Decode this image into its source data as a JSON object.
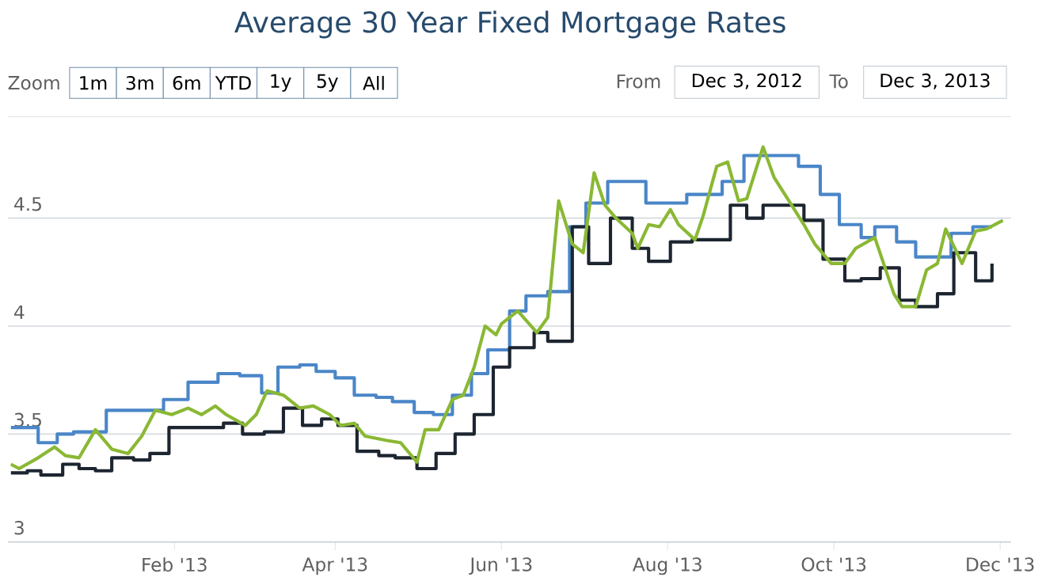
{
  "chart_data": {
    "type": "line",
    "title": "Average 30 Year Fixed Mortgage Rates",
    "annotations": [
      "Zoom",
      "1m",
      "3m",
      "6m",
      "YTD",
      "1y",
      "5y",
      "All",
      "From",
      "Dec 3, 2012",
      "To",
      "Dec 3, 2013"
    ],
    "xlim": [
      "2012-12-02",
      "2013-12-05"
    ],
    "ylim": [
      3,
      4.97
    ],
    "xticks": [
      {
        "value": "2013-02-01",
        "label": "Feb '13"
      },
      {
        "value": "2013-04-01",
        "label": "Apr '13"
      },
      {
        "value": "2013-06-01",
        "label": "Jun '13"
      },
      {
        "value": "2013-08-01",
        "label": "Aug '13"
      },
      {
        "value": "2013-10-01",
        "label": "Oct '13"
      },
      {
        "value": "2013-12-01",
        "label": "Dec '13"
      }
    ],
    "yticks": [
      3,
      3.5,
      4,
      4.5
    ],
    "grid": "y",
    "series": [
      {
        "type": "step",
        "color": "#4a86c8",
        "x": [
          "2012-12-03",
          "2012-12-13",
          "2012-12-20",
          "2012-12-26",
          "2013-01-07",
          "2013-01-28",
          "2013-02-06",
          "2013-02-17",
          "2013-02-25",
          "2013-03-05",
          "2013-03-11",
          "2013-03-19",
          "2013-03-25",
          "2013-04-01",
          "2013-04-08",
          "2013-04-16",
          "2013-04-22",
          "2013-04-30",
          "2013-05-07",
          "2013-05-14",
          "2013-05-21",
          "2013-05-27",
          "2013-06-04",
          "2013-06-10",
          "2013-06-18",
          "2013-06-26",
          "2013-07-02",
          "2013-07-10",
          "2013-07-24",
          "2013-08-08",
          "2013-08-21",
          "2013-08-29",
          "2013-09-18",
          "2013-09-26",
          "2013-10-03",
          "2013-10-11",
          "2013-10-16",
          "2013-10-24",
          "2013-10-31",
          "2013-11-13",
          "2013-11-21",
          "2013-11-28"
        ],
        "values": [
          3.53,
          3.46,
          3.5,
          3.51,
          3.61,
          3.66,
          3.74,
          3.78,
          3.77,
          3.69,
          3.81,
          3.82,
          3.79,
          3.76,
          3.68,
          3.67,
          3.65,
          3.6,
          3.59,
          3.68,
          3.78,
          3.89,
          4.07,
          4.14,
          4.16,
          4.46,
          4.57,
          4.67,
          4.57,
          4.61,
          4.67,
          4.79,
          4.74,
          4.61,
          4.47,
          4.41,
          4.46,
          4.39,
          4.32,
          4.43,
          4.46,
          4.46
        ]
      },
      {
        "type": "step",
        "color": "#1c2530",
        "x": [
          "2012-12-03",
          "2012-12-09",
          "2012-12-14",
          "2012-12-22",
          "2012-12-28",
          "2013-01-03",
          "2013-01-09",
          "2013-01-17",
          "2013-01-23",
          "2013-01-30",
          "2013-02-19",
          "2013-02-26",
          "2013-03-06",
          "2013-03-13",
          "2013-03-20",
          "2013-03-27",
          "2013-04-02",
          "2013-04-09",
          "2013-04-17",
          "2013-04-23",
          "2013-05-01",
          "2013-05-08",
          "2013-05-15",
          "2013-05-22",
          "2013-05-29",
          "2013-06-04",
          "2013-06-13",
          "2013-06-18",
          "2013-06-27",
          "2013-07-03",
          "2013-07-11",
          "2013-07-19",
          "2013-07-25",
          "2013-08-02",
          "2013-08-10",
          "2013-08-24",
          "2013-08-30",
          "2013-09-05",
          "2013-09-20",
          "2013-09-27",
          "2013-10-05",
          "2013-10-11",
          "2013-10-18",
          "2013-10-25",
          "2013-10-31",
          "2013-11-08",
          "2013-11-14",
          "2013-11-22",
          "2013-11-28"
        ],
        "values": [
          3.32,
          3.33,
          3.31,
          3.36,
          3.34,
          3.33,
          3.39,
          3.38,
          3.41,
          3.53,
          3.55,
          3.5,
          3.51,
          3.62,
          3.54,
          3.57,
          3.54,
          3.42,
          3.4,
          3.39,
          3.34,
          3.41,
          3.5,
          3.59,
          3.81,
          3.9,
          3.97,
          3.93,
          4.46,
          4.29,
          4.5,
          4.36,
          4.3,
          4.39,
          4.4,
          4.56,
          4.5,
          4.56,
          4.49,
          4.31,
          4.21,
          4.22,
          4.27,
          4.12,
          4.09,
          4.15,
          4.34,
          4.21,
          4.29
        ]
      },
      {
        "color": "#8ab834",
        "x": [
          "2012-12-03",
          "2012-12-06",
          "2012-12-13",
          "2012-12-19",
          "2012-12-23",
          "2012-12-28",
          "2013-01-03",
          "2013-01-09",
          "2013-01-15",
          "2013-01-20",
          "2013-01-25",
          "2013-01-31",
          "2013-02-06",
          "2013-02-11",
          "2013-02-16",
          "2013-02-20",
          "2013-02-27",
          "2013-03-03",
          "2013-03-07",
          "2013-03-13",
          "2013-03-19",
          "2013-03-24",
          "2013-03-30",
          "2013-04-03",
          "2013-04-08",
          "2013-04-12",
          "2013-04-20",
          "2013-04-25",
          "2013-05-01",
          "2013-05-04",
          "2013-05-09",
          "2013-05-14",
          "2013-05-18",
          "2013-05-22",
          "2013-05-26",
          "2013-05-30",
          "2013-06-01",
          "2013-06-07",
          "2013-06-14",
          "2013-06-18",
          "2013-06-22",
          "2013-06-27",
          "2013-07-01",
          "2013-07-05",
          "2013-07-09",
          "2013-07-13",
          "2013-07-19",
          "2013-07-21",
          "2013-07-25",
          "2013-07-29",
          "2013-08-02",
          "2013-08-05",
          "2013-08-11",
          "2013-08-14",
          "2013-08-19",
          "2013-08-23",
          "2013-08-27",
          "2013-08-30",
          "2013-09-05",
          "2013-09-09",
          "2013-09-14",
          "2013-09-20",
          "2013-09-24",
          "2013-09-30",
          "2013-10-05",
          "2013-10-09",
          "2013-10-16",
          "2013-10-23",
          "2013-10-26",
          "2013-10-31",
          "2013-11-04",
          "2013-11-08",
          "2013-11-11",
          "2013-11-17",
          "2013-11-22",
          "2013-11-26",
          "2013-12-02"
        ],
        "values": [
          3.36,
          3.34,
          3.39,
          3.44,
          3.4,
          3.39,
          3.52,
          3.43,
          3.41,
          3.49,
          3.61,
          3.59,
          3.62,
          3.59,
          3.63,
          3.59,
          3.54,
          3.59,
          3.7,
          3.68,
          3.62,
          3.63,
          3.59,
          3.54,
          3.55,
          3.49,
          3.47,
          3.46,
          3.37,
          3.52,
          3.52,
          3.66,
          3.68,
          3.81,
          4.0,
          3.96,
          4.01,
          4.07,
          3.97,
          4.04,
          4.58,
          4.38,
          4.34,
          4.71,
          4.56,
          4.5,
          4.43,
          4.36,
          4.47,
          4.46,
          4.54,
          4.47,
          4.4,
          4.51,
          4.74,
          4.76,
          4.58,
          4.59,
          4.83,
          4.69,
          4.59,
          4.47,
          4.38,
          4.29,
          4.29,
          4.36,
          4.41,
          4.15,
          4.09,
          4.09,
          4.26,
          4.29,
          4.45,
          4.29,
          4.44,
          4.45,
          4.49
        ]
      }
    ]
  }
}
